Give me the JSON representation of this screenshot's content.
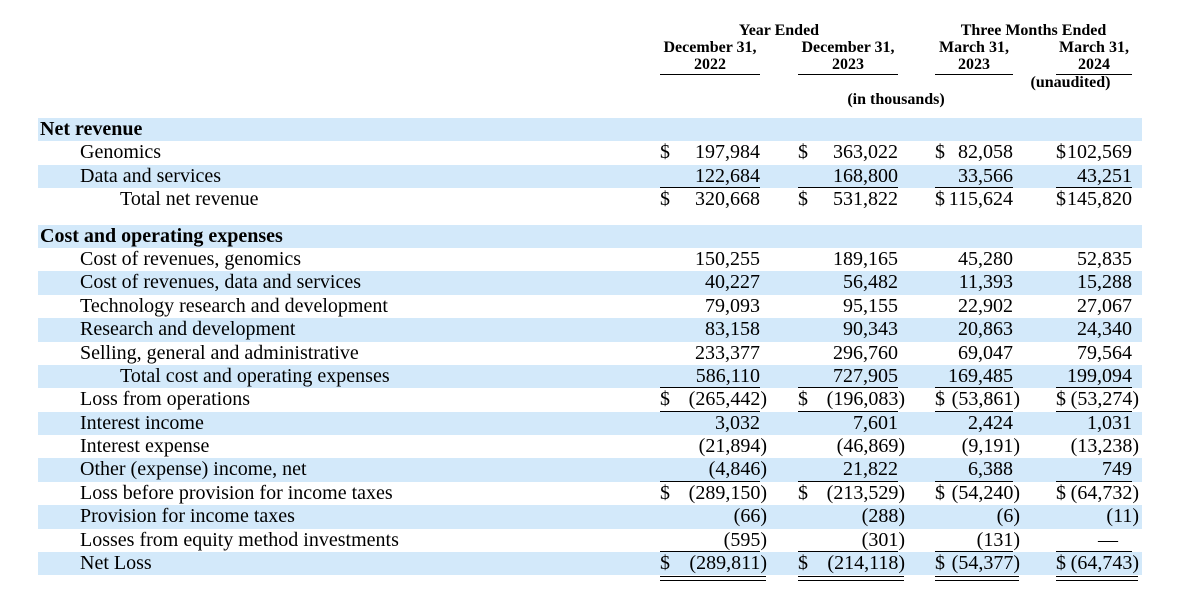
{
  "colors": {
    "row_highlight": "#d3e9fa",
    "text": "#000000",
    "background": "#ffffff"
  },
  "header": {
    "year_ended_label": "Year Ended",
    "three_months_label": "Three Months Ended",
    "unaudited_label": "(unaudited)",
    "in_thousands_label": "(in thousands)",
    "columns": [
      {
        "line1": "December 31,",
        "line2": "2022"
      },
      {
        "line1": "December 31,",
        "line2": "2023"
      },
      {
        "line1": "March 31,",
        "line2": "2023"
      },
      {
        "line1": "March 31,",
        "line2": "2024"
      }
    ]
  },
  "table": {
    "rows": [
      {
        "type": "section",
        "label": "Net revenue",
        "indent": 0,
        "shaded": true,
        "dollar": false,
        "values": null,
        "rule": "none"
      },
      {
        "type": "item",
        "label": "Genomics",
        "indent": 1,
        "shaded": false,
        "dollar": true,
        "values": [
          "197,984",
          "363,022",
          "82,058",
          "102,569"
        ],
        "rule": "none"
      },
      {
        "type": "item",
        "label": "Data and services",
        "indent": 1,
        "shaded": true,
        "dollar": false,
        "values": [
          "122,684",
          "168,800",
          "33,566",
          "43,251"
        ],
        "rule": "single"
      },
      {
        "type": "item",
        "label": "Total net revenue",
        "indent": 2,
        "shaded": false,
        "dollar": true,
        "values": [
          "320,668",
          "531,822",
          "115,624",
          "145,820"
        ],
        "rule": "none"
      },
      {
        "type": "spacer"
      },
      {
        "type": "section",
        "label": "Cost and operating expenses",
        "indent": 0,
        "shaded": true,
        "dollar": false,
        "values": null,
        "rule": "none"
      },
      {
        "type": "item",
        "label": "Cost of revenues, genomics",
        "indent": 1,
        "shaded": false,
        "dollar": false,
        "values": [
          "150,255",
          "189,165",
          "45,280",
          "52,835"
        ],
        "rule": "none"
      },
      {
        "type": "item",
        "label": "Cost of revenues, data and services",
        "indent": 1,
        "shaded": true,
        "dollar": false,
        "values": [
          "40,227",
          "56,482",
          "11,393",
          "15,288"
        ],
        "rule": "none"
      },
      {
        "type": "item",
        "label": "Technology research and development",
        "indent": 1,
        "shaded": false,
        "dollar": false,
        "values": [
          "79,093",
          "95,155",
          "22,902",
          "27,067"
        ],
        "rule": "none"
      },
      {
        "type": "item",
        "label": "Research and development",
        "indent": 1,
        "shaded": true,
        "dollar": false,
        "values": [
          "83,158",
          "90,343",
          "20,863",
          "24,340"
        ],
        "rule": "none"
      },
      {
        "type": "item",
        "label": "Selling, general and administrative",
        "indent": 1,
        "shaded": false,
        "dollar": false,
        "values": [
          "233,377",
          "296,760",
          "69,047",
          "79,564"
        ],
        "rule": "none"
      },
      {
        "type": "item",
        "label": "Total cost and operating expenses",
        "indent": 2,
        "shaded": true,
        "dollar": false,
        "values": [
          "586,110",
          "727,905",
          "169,485",
          "199,094"
        ],
        "rule": "single"
      },
      {
        "type": "item",
        "label": "Loss from operations",
        "indent": 1,
        "shaded": false,
        "dollar": true,
        "values": [
          "(265,442)",
          "(196,083)",
          "(53,861)",
          "(53,274)"
        ],
        "rule": "single"
      },
      {
        "type": "item",
        "label": "Interest income",
        "indent": 1,
        "shaded": true,
        "dollar": false,
        "values": [
          "3,032",
          "7,601",
          "2,424",
          "1,031"
        ],
        "rule": "none"
      },
      {
        "type": "item",
        "label": "Interest expense",
        "indent": 1,
        "shaded": false,
        "dollar": false,
        "values": [
          "(21,894)",
          "(46,869)",
          "(9,191)",
          "(13,238)"
        ],
        "rule": "none"
      },
      {
        "type": "item",
        "label": "Other (expense) income, net",
        "indent": 1,
        "shaded": true,
        "dollar": false,
        "values": [
          "(4,846)",
          "21,822",
          "6,388",
          "749"
        ],
        "rule": "single"
      },
      {
        "type": "item",
        "label": "Loss before provision for income taxes",
        "indent": 1,
        "shaded": false,
        "dollar": true,
        "values": [
          "(289,150)",
          "(213,529)",
          "(54,240)",
          "(64,732)"
        ],
        "rule": "none"
      },
      {
        "type": "item",
        "label": "Provision for income taxes",
        "indent": 1,
        "shaded": true,
        "dollar": false,
        "values": [
          "(66)",
          "(288)",
          "(6)",
          "(11)"
        ],
        "rule": "none"
      },
      {
        "type": "item",
        "label": "Losses from equity method investments",
        "indent": 1,
        "shaded": false,
        "dollar": false,
        "values": [
          "(595)",
          "(301)",
          "(131)",
          "—"
        ],
        "rule": "single"
      },
      {
        "type": "item",
        "label": "Net Loss",
        "indent": 1,
        "shaded": true,
        "dollar": true,
        "values": [
          "(289,811)",
          "(214,118)",
          "(54,377)",
          "(64,743)"
        ],
        "rule": "double"
      }
    ]
  }
}
